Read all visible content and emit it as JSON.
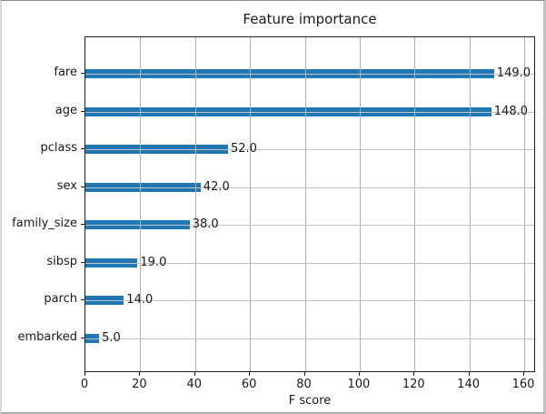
{
  "chart_data": {
    "type": "bar",
    "orientation": "horizontal",
    "title": "Feature importance",
    "xlabel": "F score",
    "ylabel": "",
    "categories": [
      "fare",
      "age",
      "pclass",
      "sex",
      "family_size",
      "sibsp",
      "parch",
      "embarked"
    ],
    "values": [
      149.0,
      148.0,
      52.0,
      42.0,
      38.0,
      19.0,
      14.0,
      5.0
    ],
    "value_labels": [
      "149.0",
      "148.0",
      "52.0",
      "42.0",
      "38.0",
      "19.0",
      "14.0",
      "5.0"
    ],
    "x_ticks": [
      0,
      20,
      40,
      60,
      80,
      100,
      120,
      140,
      160
    ],
    "xlim": [
      0,
      164.3
    ],
    "grid": true,
    "legend": false,
    "colors": {
      "bar": "#1f77b4",
      "grid": "#b0b0b0",
      "spine": "#1f1f1f",
      "text": "#1a1a1a",
      "background": "#ffffff"
    }
  }
}
